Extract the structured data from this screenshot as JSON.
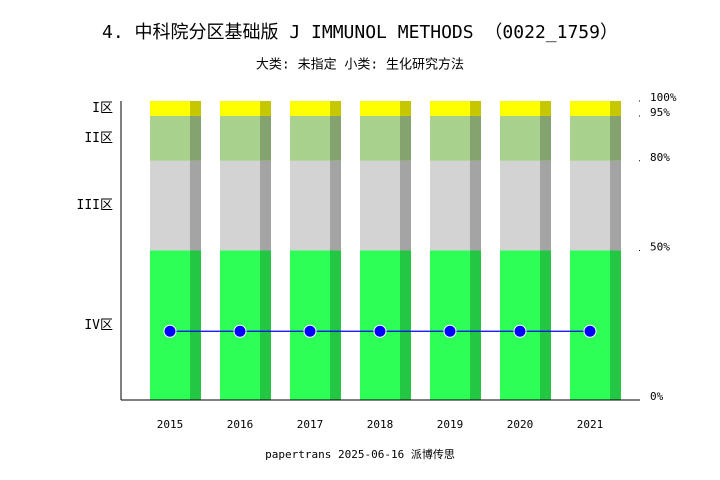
{
  "chart_data": {
    "type": "stacked-bar",
    "title": "4. 中科院分区基础版 J IMMUNOL METHODS （0022_1759）",
    "subtitle": "大类: 未指定 小类: 生化研究方法",
    "footer": "papertrans 2025-06-16 派博传思",
    "categories": [
      "2015",
      "2016",
      "2017",
      "2018",
      "2019",
      "2020",
      "2021"
    ],
    "series": [
      {
        "name": "IV区",
        "color": "#2eff57",
        "values": [
          50,
          50,
          50,
          50,
          50,
          50,
          50
        ]
      },
      {
        "name": "III区",
        "color": "#d3d3d3",
        "values": [
          30,
          30,
          30,
          30,
          30,
          30,
          30
        ]
      },
      {
        "name": "II区",
        "color": "#a9d18e",
        "values": [
          15,
          15,
          15,
          15,
          15,
          15,
          15
        ]
      },
      {
        "name": "I区",
        "color": "#ffff00",
        "values": [
          5,
          5,
          5,
          5,
          5,
          5,
          5
        ]
      }
    ],
    "line": {
      "color": "#0000ff",
      "values": [
        23,
        23,
        23,
        23,
        23,
        23,
        23
      ]
    },
    "ylim": [
      0,
      100
    ],
    "yticks": [
      {
        "value": 0,
        "label": "0%"
      },
      {
        "value": 50,
        "label": "50%"
      },
      {
        "value": 80,
        "label": "80%"
      },
      {
        "value": 95,
        "label": "95%"
      },
      {
        "value": 100,
        "label": "100%"
      }
    ]
  }
}
